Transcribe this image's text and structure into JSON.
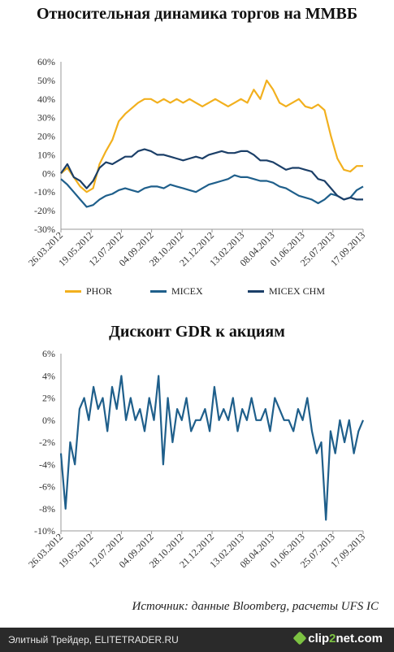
{
  "titles": {
    "chart1": "Относительная динамика торгов на ММВБ",
    "chart2": "Дисконт GDR к акциям"
  },
  "source": "Источник: данные Bloomberg, расчеты UFS IC",
  "footer": {
    "site_text": "Элитный Трейдер, ELITETRADER.RU",
    "logo_prefix": "clip",
    "logo_num": "2",
    "logo_suffix": "net.com"
  },
  "colors": {
    "phor": "#f2b01e",
    "micex": "#1f5f8b",
    "micex_chm": "#1b3f68",
    "discount": "#1f5f8b"
  },
  "chart_data": [
    {
      "type": "line",
      "title": "Относительная динамика торгов на ММВБ",
      "x_tick_labels": [
        "26.03.2012",
        "19.05.2012",
        "12.07.2012",
        "04.09.2012",
        "28.10.2012",
        "21.12.2012",
        "13.02.2013",
        "08.04.2013",
        "01.06.2013",
        "25.07.2013",
        "17.09.2013"
      ],
      "y_tick_labels": [
        "60%",
        "50%",
        "40%",
        "30%",
        "20%",
        "10%",
        "0%",
        "-10%",
        "-20%",
        "-30%"
      ],
      "ylim": [
        -30,
        60
      ],
      "legend_position": "bottom",
      "series": [
        {
          "name": "PHOR",
          "color": "#f2b01e",
          "values": [
            0,
            3,
            -2,
            -7,
            -10,
            -8,
            5,
            12,
            18,
            28,
            32,
            35,
            38,
            40,
            40,
            38,
            40,
            38,
            40,
            38,
            40,
            38,
            36,
            38,
            40,
            38,
            36,
            38,
            40,
            38,
            45,
            40,
            50,
            45,
            38,
            36,
            38,
            40,
            36,
            35,
            37,
            34,
            20,
            8,
            2,
            1,
            4,
            4
          ]
        },
        {
          "name": "MICEX",
          "color": "#1f5f8b",
          "values": [
            -3,
            -6,
            -10,
            -14,
            -18,
            -17,
            -14,
            -12,
            -11,
            -9,
            -8,
            -9,
            -10,
            -8,
            -7,
            -7,
            -8,
            -6,
            -7,
            -8,
            -9,
            -10,
            -8,
            -6,
            -5,
            -4,
            -3,
            -1,
            -2,
            -2,
            -3,
            -4,
            -4,
            -5,
            -7,
            -8,
            -10,
            -12,
            -13,
            -14,
            -16,
            -14,
            -11,
            -12,
            -14,
            -13,
            -9,
            -7
          ]
        },
        {
          "name": "MICEX CHM",
          "color": "#1b3f68",
          "values": [
            0,
            5,
            -2,
            -4,
            -8,
            -4,
            3,
            6,
            5,
            7,
            9,
            9,
            12,
            13,
            12,
            10,
            10,
            9,
            8,
            7,
            8,
            9,
            8,
            10,
            11,
            12,
            11,
            11,
            12,
            12,
            10,
            7,
            7,
            6,
            4,
            2,
            3,
            3,
            2,
            1,
            -3,
            -4,
            -8,
            -12,
            -14,
            -13,
            -14,
            -14
          ]
        }
      ]
    },
    {
      "type": "line",
      "title": "Дисконт GDR к акциям",
      "x_tick_labels": [
        "26.03.2012",
        "19.05.2012",
        "12.07.2012",
        "04.09.2012",
        "28.10.2012",
        "21.12.2012",
        "13.02.2013",
        "08.04.2013",
        "01.06.2013",
        "25.07.2013",
        "17.09.2013"
      ],
      "y_tick_labels": [
        "6%",
        "4%",
        "2%",
        "0%",
        "-2%",
        "-4%",
        "-6%",
        "-8%",
        "-10%"
      ],
      "ylim": [
        -10,
        6
      ],
      "series": [
        {
          "color": "#1f5f8b",
          "values": [
            -3,
            -8,
            -2,
            -4,
            1,
            2,
            0,
            3,
            1,
            2,
            -1,
            3,
            1,
            4,
            0,
            2,
            0,
            1,
            -1,
            2,
            0,
            4,
            -4,
            2,
            -2,
            1,
            0,
            2,
            -1,
            0,
            0,
            1,
            -1,
            3,
            0,
            1,
            0,
            2,
            -1,
            1,
            0,
            2,
            0,
            0,
            1,
            -1,
            2,
            1,
            0,
            0,
            -1,
            1,
            0,
            2,
            -1,
            -3,
            -2,
            -9,
            -1,
            -3,
            0,
            -2,
            0,
            -3,
            -1,
            0
          ]
        }
      ]
    }
  ]
}
